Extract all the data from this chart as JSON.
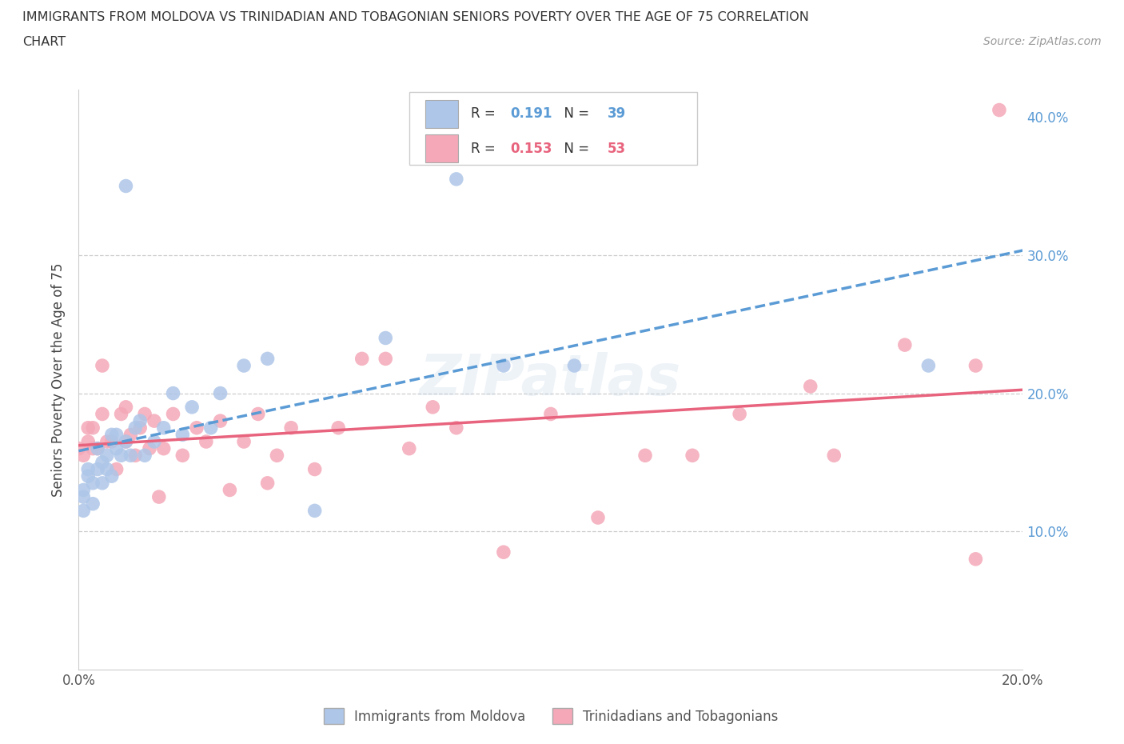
{
  "title_line1": "IMMIGRANTS FROM MOLDOVA VS TRINIDADIAN AND TOBAGONIAN SENIORS POVERTY OVER THE AGE OF 75 CORRELATION",
  "title_line2": "CHART",
  "source": "Source: ZipAtlas.com",
  "ylabel": "Seniors Poverty Over the Age of 75",
  "xmin": 0.0,
  "xmax": 0.2,
  "ymin": 0.0,
  "ymax": 0.42,
  "xticks": [
    0.0,
    0.04,
    0.08,
    0.12,
    0.16,
    0.2
  ],
  "xtick_labels": [
    "0.0%",
    "",
    "",
    "",
    "",
    "20.0%"
  ],
  "yticks": [
    0.0,
    0.1,
    0.2,
    0.3,
    0.4
  ],
  "ytick_labels_right": [
    "",
    "10.0%",
    "20.0%",
    "30.0%",
    "40.0%"
  ],
  "r_moldova": 0.191,
  "n_moldova": 39,
  "r_trini": 0.153,
  "n_trini": 53,
  "color_moldova": "#aec6e8",
  "color_trini": "#f4a8b8",
  "color_moldova_line": "#5b9bd5",
  "color_trini_line": "#e8637d",
  "watermark": "ZIPatlas",
  "moldova_scatter_x": [
    0.001,
    0.001,
    0.001,
    0.002,
    0.002,
    0.003,
    0.003,
    0.004,
    0.004,
    0.005,
    0.005,
    0.006,
    0.006,
    0.007,
    0.007,
    0.008,
    0.008,
    0.009,
    0.01,
    0.011,
    0.012,
    0.013,
    0.014,
    0.016,
    0.018,
    0.02,
    0.022,
    0.024,
    0.028,
    0.03,
    0.035,
    0.04,
    0.05,
    0.065,
    0.08,
    0.09,
    0.01,
    0.105,
    0.18
  ],
  "moldova_scatter_y": [
    0.115,
    0.125,
    0.13,
    0.14,
    0.145,
    0.12,
    0.135,
    0.145,
    0.16,
    0.15,
    0.135,
    0.155,
    0.145,
    0.14,
    0.17,
    0.17,
    0.16,
    0.155,
    0.165,
    0.155,
    0.175,
    0.18,
    0.155,
    0.165,
    0.175,
    0.2,
    0.17,
    0.19,
    0.175,
    0.2,
    0.22,
    0.225,
    0.115,
    0.24,
    0.355,
    0.22,
    0.35,
    0.22,
    0.22
  ],
  "trini_scatter_x": [
    0.0,
    0.001,
    0.002,
    0.002,
    0.003,
    0.003,
    0.004,
    0.005,
    0.005,
    0.006,
    0.007,
    0.008,
    0.009,
    0.01,
    0.01,
    0.011,
    0.012,
    0.013,
    0.014,
    0.015,
    0.016,
    0.017,
    0.018,
    0.02,
    0.022,
    0.025,
    0.027,
    0.03,
    0.032,
    0.035,
    0.038,
    0.04,
    0.042,
    0.045,
    0.05,
    0.055,
    0.06,
    0.065,
    0.07,
    0.075,
    0.08,
    0.09,
    0.1,
    0.11,
    0.12,
    0.13,
    0.14,
    0.155,
    0.16,
    0.175,
    0.19,
    0.195,
    0.19
  ],
  "trini_scatter_y": [
    0.16,
    0.155,
    0.165,
    0.175,
    0.175,
    0.16,
    0.16,
    0.22,
    0.185,
    0.165,
    0.165,
    0.145,
    0.185,
    0.165,
    0.19,
    0.17,
    0.155,
    0.175,
    0.185,
    0.16,
    0.18,
    0.125,
    0.16,
    0.185,
    0.155,
    0.175,
    0.165,
    0.18,
    0.13,
    0.165,
    0.185,
    0.135,
    0.155,
    0.175,
    0.145,
    0.175,
    0.225,
    0.225,
    0.16,
    0.19,
    0.175,
    0.085,
    0.185,
    0.11,
    0.155,
    0.155,
    0.185,
    0.205,
    0.155,
    0.235,
    0.22,
    0.405,
    0.08
  ],
  "legend_labels": [
    "Immigrants from Moldova",
    "Trinidadians and Tobagonians"
  ]
}
